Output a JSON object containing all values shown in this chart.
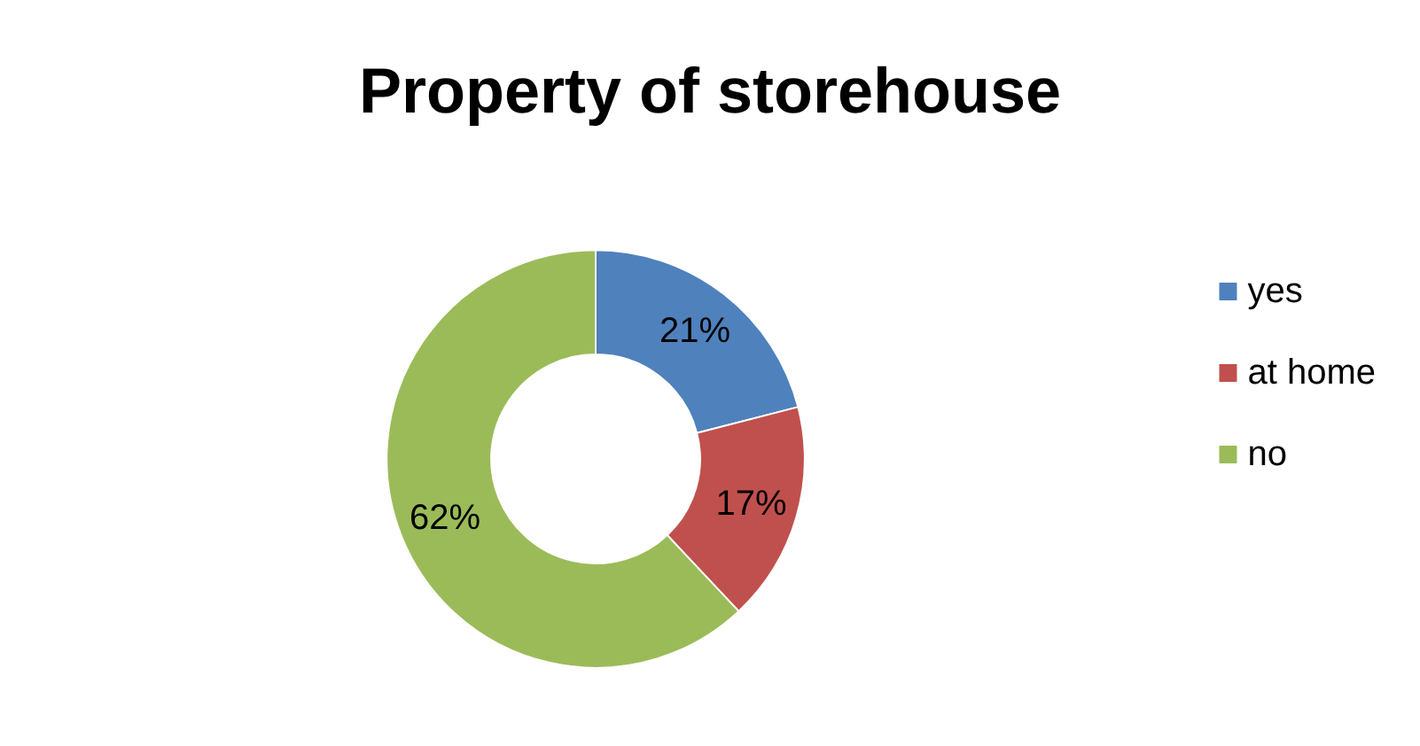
{
  "chart_data": {
    "type": "donut",
    "title": "Property of storehouse",
    "categories": [
      "yes",
      "at home",
      "no"
    ],
    "values": [
      21,
      17,
      62
    ],
    "value_labels": [
      "21%",
      "17%",
      "62%"
    ],
    "colors": [
      "#4f81bd",
      "#c0504d",
      "#9bbb59"
    ],
    "legend": "right"
  }
}
